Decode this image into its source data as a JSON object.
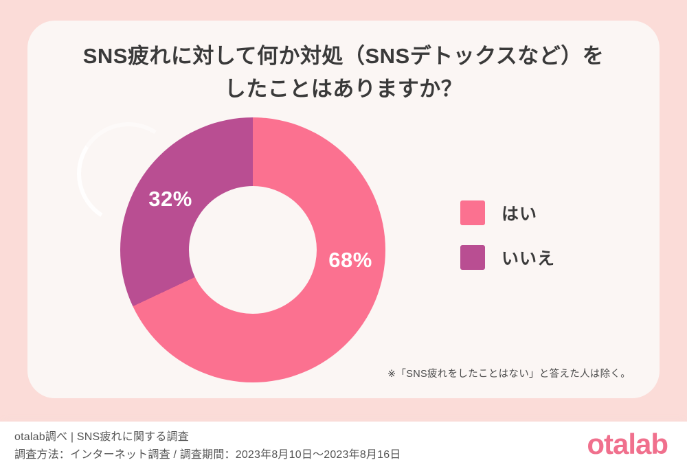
{
  "page": {
    "background_color": "#fbdcd8",
    "card_color": "#fbf6f4"
  },
  "title": {
    "line1": "SNS疲れに対して何か対処（SNSデトックスなど）を",
    "line2": "したことはありますか？"
  },
  "chart_data": {
    "type": "pie",
    "donut": true,
    "start_angle": "top",
    "direction": "clockwise",
    "categories": [
      "はい",
      "いいえ"
    ],
    "values": [
      68,
      32
    ],
    "value_labels": [
      "68%",
      "32%"
    ],
    "colors": [
      "#fb7190",
      "#b94e92"
    ],
    "legend_position": "right",
    "title": "SNS疲れに対して何か対処（SNSデトックスなど）をしたことはありますか？"
  },
  "legend": {
    "items": [
      {
        "label": "はい",
        "color": "#fb7190"
      },
      {
        "label": "いいえ",
        "color": "#b94e92"
      }
    ]
  },
  "note": "※「SNS疲れをしたことはない」と答えた人は除く。",
  "footer": {
    "line1": "otalab調べ | SNS疲れに関する調査",
    "line2": "調査方法：インターネット調査 / 調査期間：2023年8月10日〜2023年8月16日",
    "logo_text": "otalab",
    "logo_color": "#f0708d"
  }
}
